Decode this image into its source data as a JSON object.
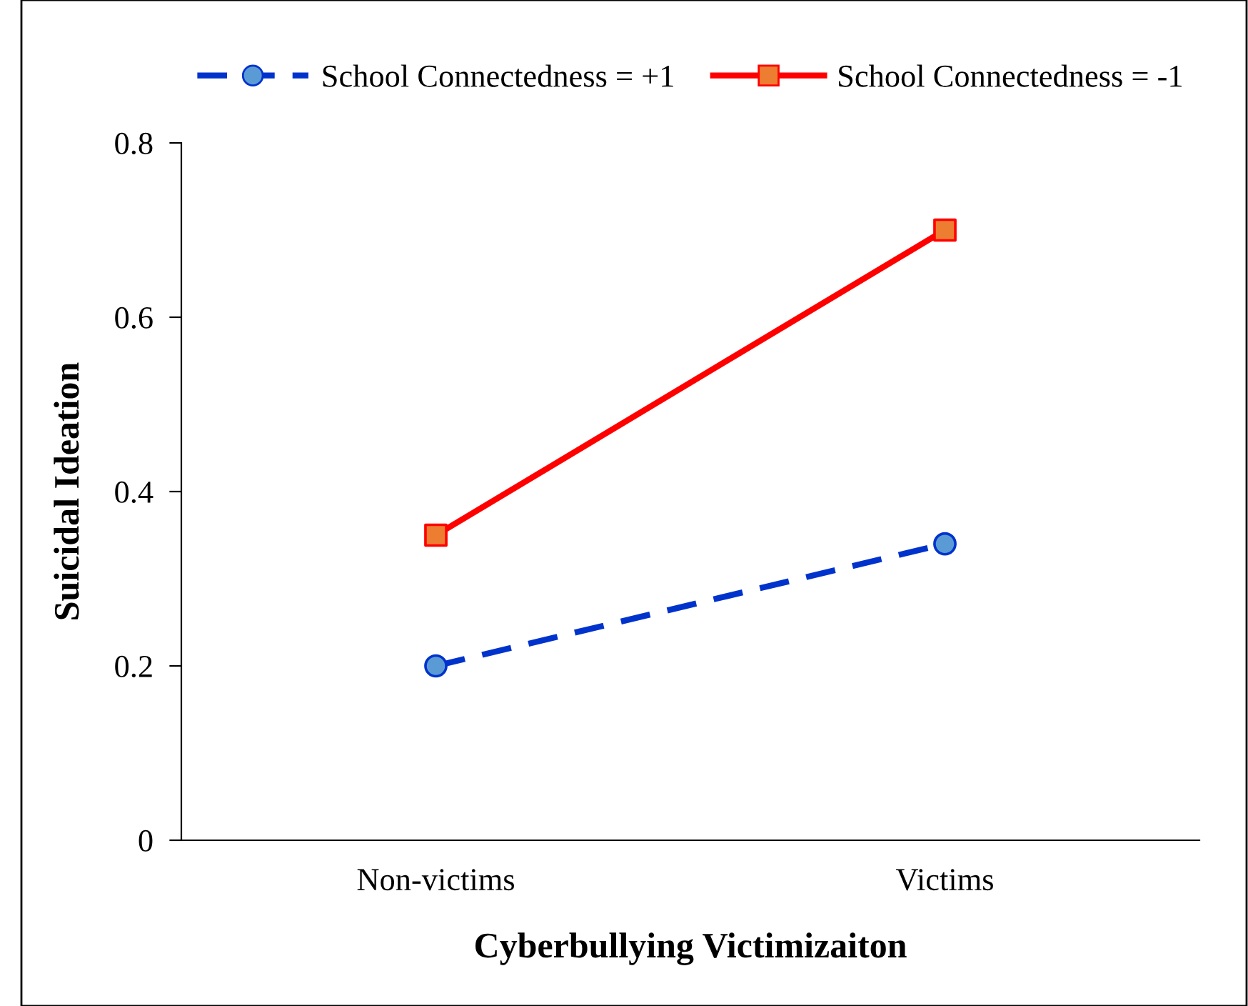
{
  "chart_data": {
    "type": "line",
    "xlabel": "Cyberbullying Victimizaiton",
    "ylabel": "Suicidal Ideation",
    "categories": [
      "Non-victims",
      "Victims"
    ],
    "series": [
      {
        "name": "School Connectedness = +1",
        "color": "#0033cc",
        "colors": [
          "#5b9bd5",
          "#5b9bd5"
        ],
        "values": [
          0.2,
          0.34
        ],
        "marker": "circle",
        "line_style": "dashed"
      },
      {
        "name": "School Connectedness = -1",
        "color": "#ff0000",
        "colors": [
          "#ed7d31",
          "#ed7d31"
        ],
        "values": [
          0.35,
          0.7
        ],
        "marker": "square",
        "line_style": "solid"
      }
    ],
    "ylim": [
      0,
      0.8
    ],
    "yticks": [
      {
        "value": 0,
        "label": "0"
      },
      0.2,
      0.4,
      0.6,
      0.8
    ],
    "grid": false,
    "legend": "top"
  }
}
